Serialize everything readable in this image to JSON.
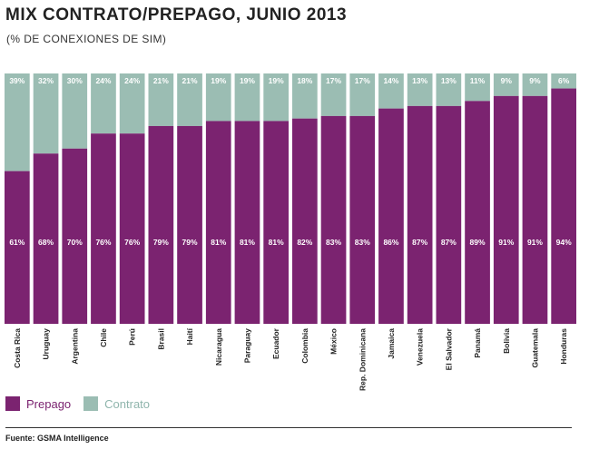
{
  "title": "MIX CONTRATO/PREPAGO, JUNIO 2013",
  "subtitle": "(% DE CONEXIONES DE SIM)",
  "legend": {
    "prepago": "Prepago",
    "contrato": "Contrato"
  },
  "source": "Fuente: GSMA Intelligence",
  "colors": {
    "prepago": "#7b2370",
    "contrato": "#9bbdb3"
  },
  "chart_data": {
    "type": "bar",
    "stacked": true,
    "normalized_percent": true,
    "categories": [
      "Costa Rica",
      "Uruguay",
      "Argentina",
      "Chile",
      "Perú",
      "Brasil",
      "Haití",
      "Nicaragua",
      "Paraguay",
      "Ecuador",
      "Colombia",
      "México",
      "Rep. Dominicana",
      "Jamaica",
      "Venezuela",
      "El Salvador",
      "Panamá",
      "Bolivia",
      "Guatemala",
      "Honduras"
    ],
    "series": [
      {
        "name": "Prepago",
        "values": [
          61,
          68,
          70,
          76,
          76,
          79,
          79,
          81,
          81,
          81,
          82,
          83,
          83,
          86,
          87,
          87,
          89,
          91,
          91,
          94
        ]
      },
      {
        "name": "Contrato",
        "values": [
          39,
          32,
          30,
          24,
          24,
          21,
          21,
          19,
          19,
          19,
          18,
          17,
          17,
          14,
          13,
          13,
          11,
          9,
          9,
          6
        ]
      }
    ],
    "ylim": [
      0,
      100
    ],
    "title": "MIX CONTRATO/PREPAGO, JUNIO 2013",
    "subtitle": "(% DE CONEXIONES DE SIM)",
    "legend_position": "bottom-left",
    "grid": false
  }
}
